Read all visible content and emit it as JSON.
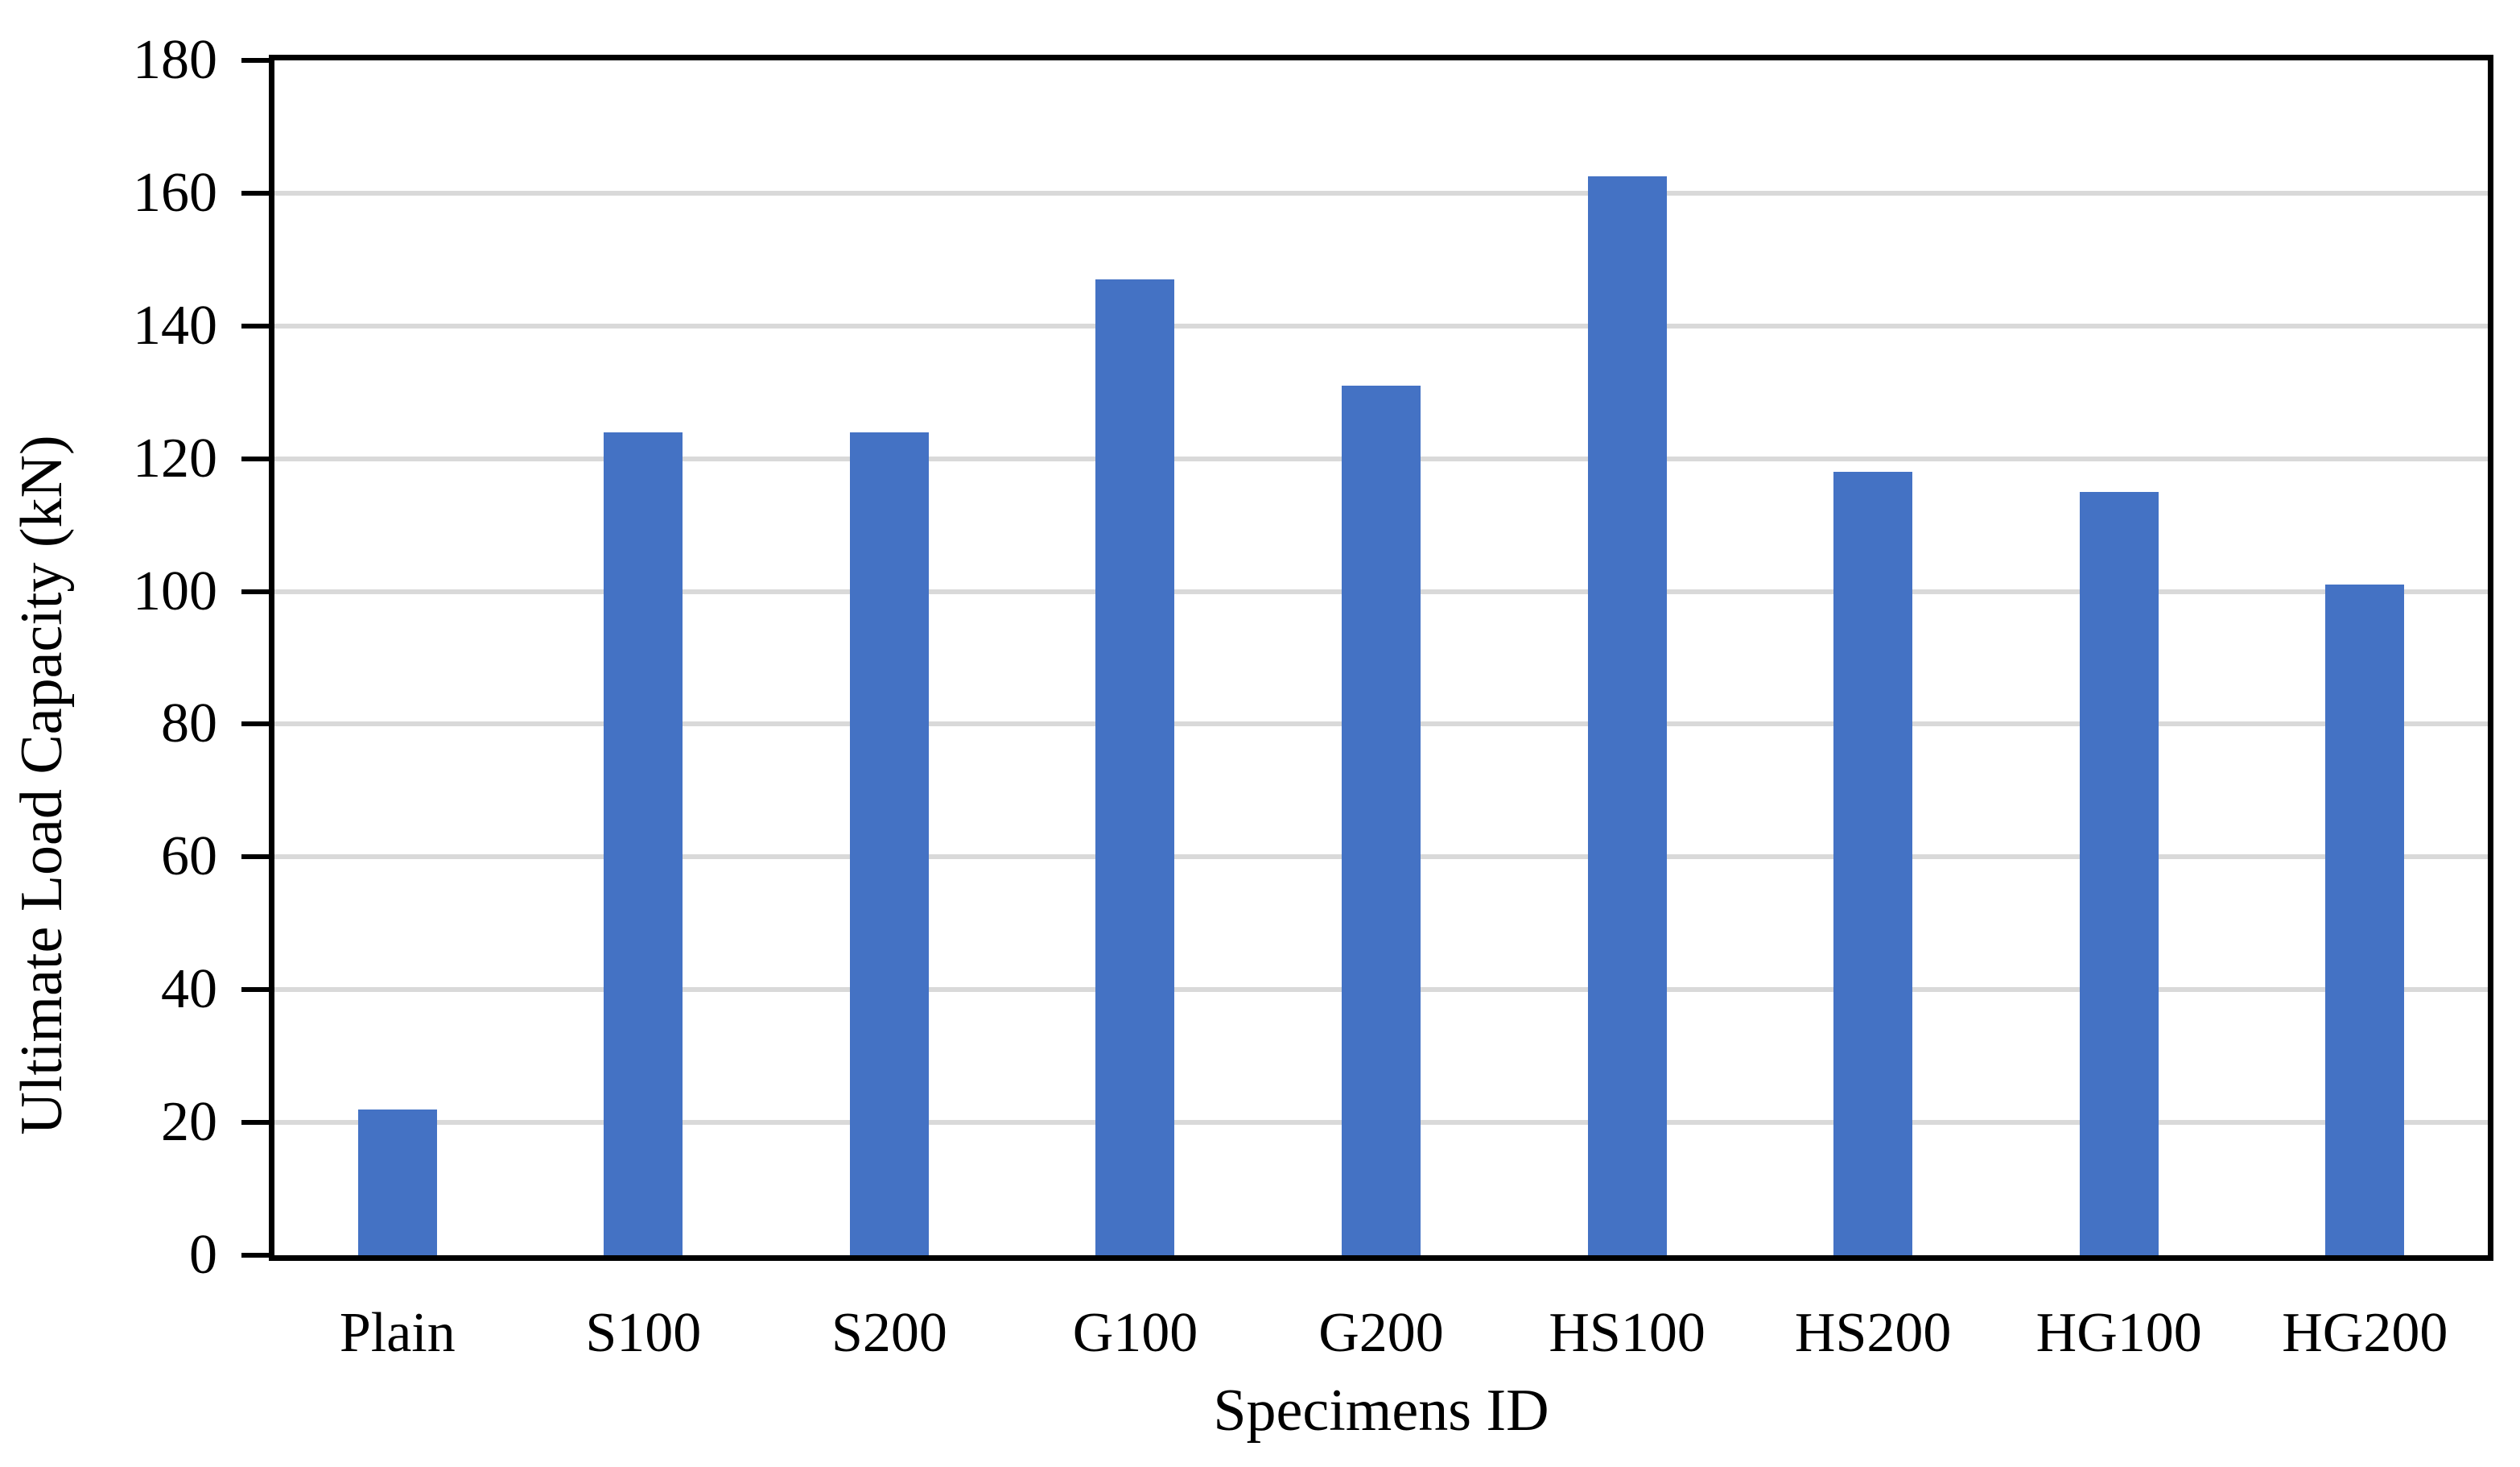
{
  "chart_data": {
    "type": "bar",
    "categories": [
      "Plain",
      "S100",
      "S200",
      "G100",
      "G200",
      "HS100",
      "HS200",
      "HG100",
      "HG200"
    ],
    "values": [
      22,
      124,
      124,
      147,
      131,
      162.5,
      118,
      115,
      101
    ],
    "title": "",
    "xlabel": "Specimens ID",
    "ylabel": "Ultimate Load Capacity (kN)",
    "ylim": [
      0,
      180
    ],
    "ytick_step": 20,
    "ytick_labels": [
      "0",
      "20",
      "40",
      "60",
      "80",
      "100",
      "120",
      "140",
      "160",
      "180"
    ],
    "grid": true,
    "legend": false,
    "colors": {
      "bar": "#4472C4",
      "gridline": "#D9D9D9",
      "axis_frame": "#000000",
      "text": "#000000",
      "background": "#FFFFFF"
    }
  }
}
